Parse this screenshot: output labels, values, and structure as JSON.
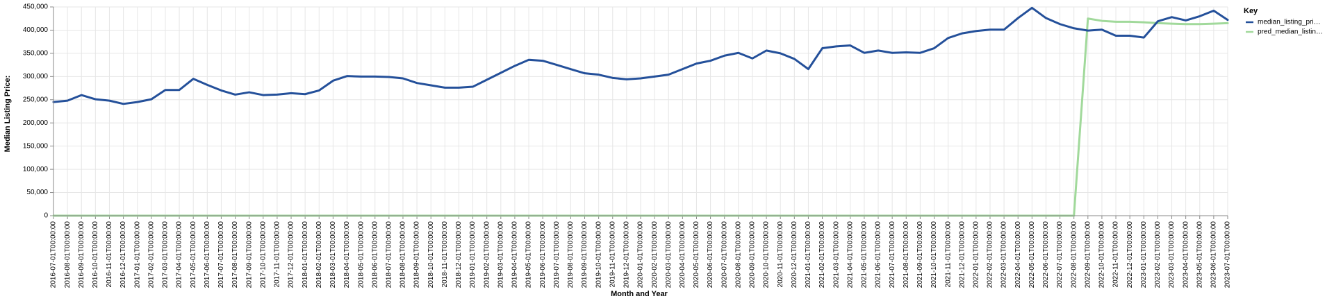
{
  "chart_data": {
    "type": "line",
    "xlabel": "Month and Year",
    "ylabel": "Median Listing Price:",
    "ylim": [
      0,
      450000
    ],
    "yticks": [
      "0",
      "50,000",
      "100,000",
      "150,000",
      "200,000",
      "250,000",
      "300,000",
      "350,000",
      "400,000",
      "450,000"
    ],
    "grid": true,
    "legend": {
      "title": "Key",
      "position": "right"
    },
    "x": [
      "2016-07-01T00:00:00",
      "2016-08-01T00:00:00",
      "2016-09-01T00:00:00",
      "2016-10-01T00:00:00",
      "2016-11-01T00:00:00",
      "2016-12-01T00:00:00",
      "2017-01-01T00:00:00",
      "2017-02-01T00:00:00",
      "2017-03-01T00:00:00",
      "2017-04-01T00:00:00",
      "2017-05-01T00:00:00",
      "2017-06-01T00:00:00",
      "2017-07-01T00:00:00",
      "2017-08-01T00:00:00",
      "2017-09-01T00:00:00",
      "2017-10-01T00:00:00",
      "2017-11-01T00:00:00",
      "2017-12-01T00:00:00",
      "2018-01-01T00:00:00",
      "2018-02-01T00:00:00",
      "2018-03-01T00:00:00",
      "2018-04-01T00:00:00",
      "2018-05-01T00:00:00",
      "2018-06-01T00:00:00",
      "2018-07-01T00:00:00",
      "2018-08-01T00:00:00",
      "2018-09-01T00:00:00",
      "2018-10-01T00:00:00",
      "2018-11-01T00:00:00",
      "2018-12-01T00:00:00",
      "2019-01-01T00:00:00",
      "2019-02-01T00:00:00",
      "2019-03-01T00:00:00",
      "2019-04-01T00:00:00",
      "2019-05-01T00:00:00",
      "2019-06-01T00:00:00",
      "2019-07-01T00:00:00",
      "2019-08-01T00:00:00",
      "2019-09-01T00:00:00",
      "2019-10-01T00:00:00",
      "2019-11-01T00:00:00",
      "2019-12-01T00:00:00",
      "2020-01-01T00:00:00",
      "2020-02-01T00:00:00",
      "2020-03-01T00:00:00",
      "2020-04-01T00:00:00",
      "2020-05-01T00:00:00",
      "2020-06-01T00:00:00",
      "2020-07-01T00:00:00",
      "2020-08-01T00:00:00",
      "2020-09-01T00:00:00",
      "2020-10-01T00:00:00",
      "2020-11-01T00:00:00",
      "2020-12-01T00:00:00",
      "2021-01-01T00:00:00",
      "2021-02-01T00:00:00",
      "2021-03-01T00:00:00",
      "2021-04-01T00:00:00",
      "2021-05-01T00:00:00",
      "2021-06-01T00:00:00",
      "2021-07-01T00:00:00",
      "2021-08-01T00:00:00",
      "2021-09-01T00:00:00",
      "2021-10-01T00:00:00",
      "2021-11-01T00:00:00",
      "2021-12-01T00:00:00",
      "2022-01-01T00:00:00",
      "2022-02-01T00:00:00",
      "2022-03-01T00:00:00",
      "2022-04-01T00:00:00",
      "2022-05-01T00:00:00",
      "2022-06-01T00:00:00",
      "2022-07-01T00:00:00",
      "2022-08-01T00:00:00",
      "2022-09-01T00:00:00",
      "2022-10-01T00:00:00",
      "2022-11-01T00:00:00",
      "2022-12-01T00:00:00",
      "2023-01-01T00:00:00",
      "2023-02-01T00:00:00",
      "2023-03-01T00:00:00",
      "2023-04-01T00:00:00",
      "2023-05-01T00:00:00",
      "2023-06-01T00:00:00",
      "2023-07-01T00:00:00"
    ],
    "series": [
      {
        "name": "median_listing_pri…",
        "color": "#24509a",
        "values": [
          245000,
          248000,
          260000,
          251000,
          248000,
          241000,
          245000,
          251000,
          271000,
          271000,
          295000,
          282000,
          270000,
          261000,
          266000,
          260000,
          261000,
          264000,
          262000,
          270000,
          291000,
          301000,
          300000,
          300000,
          299000,
          296000,
          286000,
          281000,
          276000,
          276000,
          278000,
          293000,
          308000,
          323000,
          336000,
          334000,
          325000,
          316000,
          307000,
          304000,
          297000,
          294000,
          296000,
          300000,
          304000,
          316000,
          328000,
          334000,
          345000,
          351000,
          339000,
          356000,
          350000,
          338000,
          316000,
          361000,
          365000,
          367000,
          351000,
          356000,
          351000,
          352000,
          351000,
          361000,
          383000,
          393000,
          398000,
          401000,
          401000,
          426000,
          448000,
          426000,
          413000,
          404000,
          399000,
          401000,
          388000,
          388000,
          384000,
          419000,
          428000,
          421000,
          430000,
          442000,
          422000
        ]
      },
      {
        "name": "pred_median_listin…",
        "color": "#a1d99b",
        "values": [
          0,
          0,
          0,
          0,
          0,
          0,
          0,
          0,
          0,
          0,
          0,
          0,
          0,
          0,
          0,
          0,
          0,
          0,
          0,
          0,
          0,
          0,
          0,
          0,
          0,
          0,
          0,
          0,
          0,
          0,
          0,
          0,
          0,
          0,
          0,
          0,
          0,
          0,
          0,
          0,
          0,
          0,
          0,
          0,
          0,
          0,
          0,
          0,
          0,
          0,
          0,
          0,
          0,
          0,
          0,
          0,
          0,
          0,
          0,
          0,
          0,
          0,
          0,
          0,
          0,
          0,
          0,
          0,
          0,
          0,
          0,
          0,
          0,
          0,
          425000,
          420000,
          418000,
          418000,
          417000,
          415000,
          414000,
          413000,
          413000,
          414000,
          415000
        ]
      }
    ]
  }
}
